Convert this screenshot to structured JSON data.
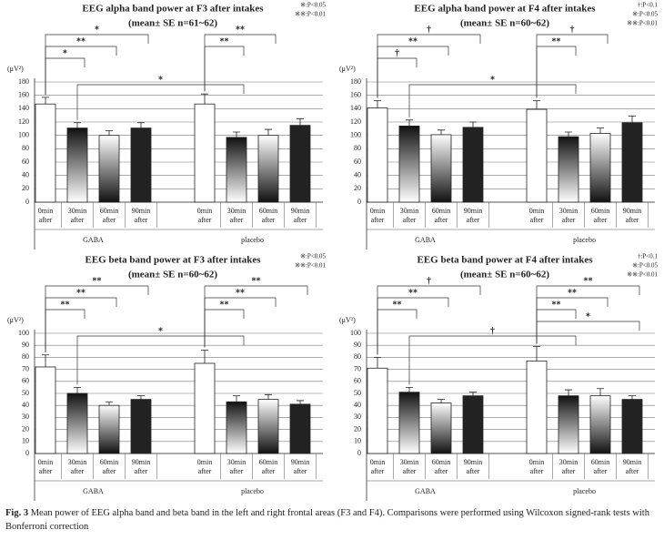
{
  "chart_data": [
    {
      "type": "bar",
      "title": "EEG alpha band power at F3 after intakes",
      "subtitle": "(mean± SE n=61~62)",
      "significance_legend": [
        "※:P<0.05",
        "※※:P<0.01"
      ],
      "ylabel": "(μV²)",
      "categories": [
        [
          "0min",
          "after"
        ],
        [
          "30min",
          "after"
        ],
        [
          "60min",
          "after"
        ],
        [
          "90min",
          "after"
        ],
        [
          "0min",
          "after"
        ],
        [
          "30min",
          "after"
        ],
        [
          "60min",
          "after"
        ],
        [
          "90min",
          "after"
        ]
      ],
      "groups": [
        "GABA",
        "placebo"
      ],
      "values": [
        147,
        111,
        100,
        111,
        147,
        97,
        100,
        115
      ],
      "errors": [
        10,
        8,
        7,
        8,
        15,
        8,
        9,
        10
      ],
      "ylim": [
        0,
        180
      ],
      "yticks": [
        0,
        20,
        40,
        60,
        80,
        100,
        120,
        140,
        160,
        180
      ],
      "grid": true,
      "comparisons": [
        {
          "from": 0,
          "to": 3,
          "label": "*"
        },
        {
          "from": 0,
          "to": 2,
          "label": "**"
        },
        {
          "from": 0,
          "to": 1,
          "label": "*"
        },
        {
          "from": 4,
          "to": 6,
          "label": "**"
        },
        {
          "from": 4,
          "to": 5,
          "label": "**"
        },
        {
          "from": 1,
          "to": 5,
          "label": "*"
        }
      ]
    },
    {
      "type": "bar",
      "title": "EEG alpha band power at F4 after intakes",
      "subtitle": "(mean± SE n=60~62)",
      "significance_legend": [
        "†:P<0.1",
        "※:P<0.05",
        "※※:P<0.01"
      ],
      "ylabel": "(μV²)",
      "categories": [
        [
          "0min",
          "after"
        ],
        [
          "30min",
          "after"
        ],
        [
          "60min",
          "after"
        ],
        [
          "90min",
          "after"
        ],
        [
          "0min",
          "after"
        ],
        [
          "30min",
          "after"
        ],
        [
          "60min",
          "after"
        ],
        [
          "90min",
          "after"
        ]
      ],
      "groups": [
        "GABA",
        "placebo"
      ],
      "values": [
        141,
        114,
        101,
        112,
        139,
        98,
        103,
        119
      ],
      "errors": [
        11,
        9,
        7,
        8,
        13,
        7,
        8,
        10
      ],
      "ylim": [
        0,
        180
      ],
      "yticks": [
        0,
        20,
        40,
        60,
        80,
        100,
        120,
        140,
        160,
        180
      ],
      "grid": true,
      "comparisons": [
        {
          "from": 0,
          "to": 3,
          "label": "†"
        },
        {
          "from": 0,
          "to": 2,
          "label": "**"
        },
        {
          "from": 0,
          "to": 1,
          "label": "†"
        },
        {
          "from": 4,
          "to": 6,
          "label": "†"
        },
        {
          "from": 4,
          "to": 5,
          "label": "**"
        },
        {
          "from": 1,
          "to": 5,
          "label": "*"
        }
      ]
    },
    {
      "type": "bar",
      "title": "EEG beta band power at F3 after intakes",
      "subtitle": "(mean± SE n=60~62)",
      "significance_legend": [
        "※:P<0.05",
        "※※:P<0.01"
      ],
      "ylabel": "(μV²)",
      "categories": [
        [
          "0min",
          "after"
        ],
        [
          "30min",
          "after"
        ],
        [
          "60min",
          "after"
        ],
        [
          "90min",
          "after"
        ],
        [
          "0min",
          "after"
        ],
        [
          "30min",
          "after"
        ],
        [
          "60min",
          "after"
        ],
        [
          "90min",
          "after"
        ]
      ],
      "groups": [
        "GABA",
        "placebo"
      ],
      "values": [
        72,
        50,
        40,
        45,
        75,
        43,
        45,
        41
      ],
      "errors": [
        10,
        5,
        3,
        3,
        11,
        5,
        4,
        3
      ],
      "ylim": [
        0,
        100
      ],
      "yticks": [
        0,
        10,
        20,
        30,
        40,
        50,
        60,
        70,
        80,
        90,
        100
      ],
      "grid": true,
      "comparisons": [
        {
          "from": 0,
          "to": 3,
          "label": "**"
        },
        {
          "from": 0,
          "to": 2,
          "label": "**"
        },
        {
          "from": 0,
          "to": 1,
          "label": "**"
        },
        {
          "from": 4,
          "to": 7,
          "label": "**"
        },
        {
          "from": 4,
          "to": 6,
          "label": "**"
        },
        {
          "from": 4,
          "to": 5,
          "label": "**"
        },
        {
          "from": 1,
          "to": 5,
          "label": "*"
        }
      ]
    },
    {
      "type": "bar",
      "title": "EEG beta band power at F4 after intakes",
      "subtitle": "(mean± SE n=60~62)",
      "significance_legend": [
        "†:P<0.1",
        "※:P<0.05",
        "※※:P<0.01"
      ],
      "ylabel": "(μV²)",
      "categories": [
        [
          "0min",
          "after"
        ],
        [
          "30min",
          "after"
        ],
        [
          "60min",
          "after"
        ],
        [
          "90min",
          "after"
        ],
        [
          "0min",
          "after"
        ],
        [
          "30min",
          "after"
        ],
        [
          "60min",
          "after"
        ],
        [
          "90min",
          "after"
        ]
      ],
      "groups": [
        "GABA",
        "placebo"
      ],
      "values": [
        71,
        51,
        42,
        48,
        77,
        48,
        48,
        45
      ],
      "errors": [
        9,
        4,
        3,
        3,
        12,
        5,
        6,
        3
      ],
      "ylim": [
        0,
        100
      ],
      "yticks": [
        0,
        10,
        20,
        30,
        40,
        50,
        60,
        70,
        80,
        90,
        100
      ],
      "grid": true,
      "comparisons": [
        {
          "from": 0,
          "to": 3,
          "label": "†"
        },
        {
          "from": 0,
          "to": 2,
          "label": "**"
        },
        {
          "from": 0,
          "to": 1,
          "label": "**"
        },
        {
          "from": 4,
          "to": 7,
          "label": "**"
        },
        {
          "from": 4,
          "to": 6,
          "label": "**"
        },
        {
          "from": 4,
          "to": 5,
          "label": "**"
        },
        {
          "from": 4,
          "to": 7,
          "label": "*"
        },
        {
          "from": 1,
          "to": 5,
          "label": "†"
        }
      ]
    }
  ],
  "caption": {
    "label": "Fig. 3",
    "text": "Mean power of EEG alpha band and beta band in the left and right frontal areas (F3 and F4). Comparisons were performed using Wilcoxon signed-rank tests with Bonferroni correction"
  }
}
